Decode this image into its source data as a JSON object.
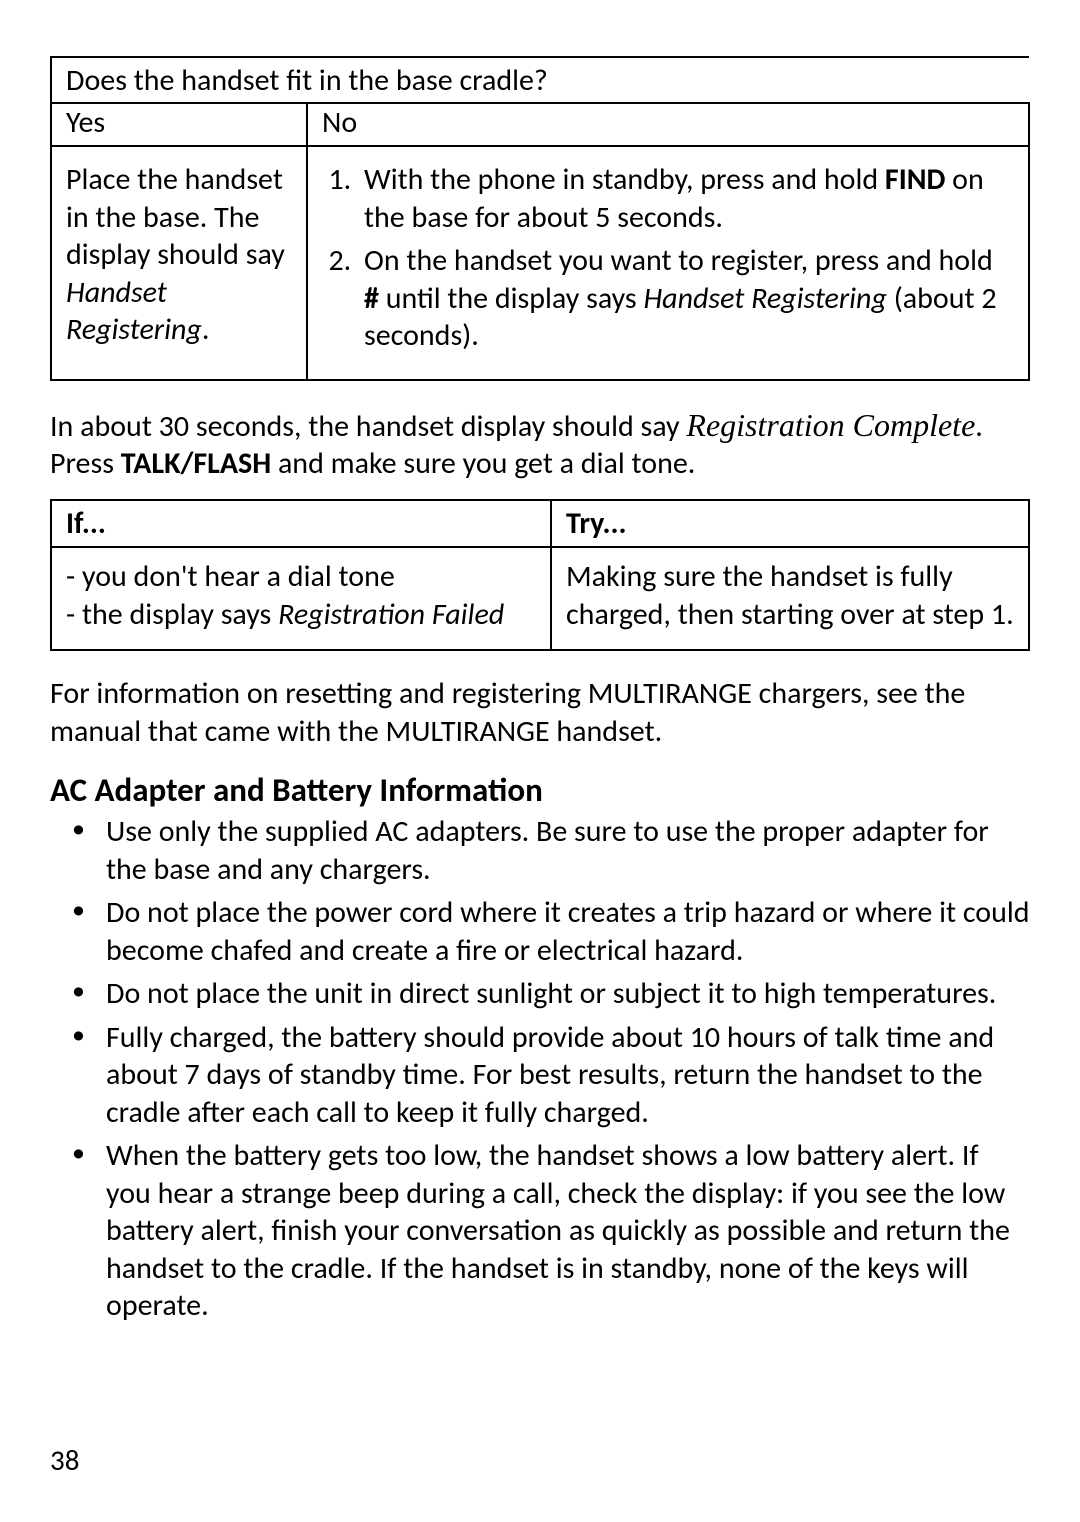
{
  "page_number": "38",
  "table1": {
    "question": "Does the handset fit in the base cradle?",
    "yes_header": "Yes",
    "no_header": "No",
    "yes_body_pre": "Place the handset in the base. The display should say ",
    "yes_body_em": "Handset Registering",
    "yes_body_post": ".",
    "no_step1_pre": "With the phone in standby, press and hold ",
    "no_step1_bold": "FIND",
    "no_step1_post": " on the base for about 5 seconds.",
    "no_step2_pre": "On the handset you want to register, press and hold ",
    "no_step2_bold": "#",
    "no_step2_mid": " until the display says ",
    "no_step2_em": "Handset Registering",
    "no_step2_post": " (about 2 seconds)."
  },
  "mid_para": {
    "pre": "In about 30 seconds, the handset display should say ",
    "em": "Registration Complete",
    "mid": ". Press ",
    "bold": "TALK/FLASH",
    "post": " and make sure you get a dial tone."
  },
  "table2": {
    "if_header": "If...",
    "try_header": "Try...",
    "if_item1": "you don't hear a dial tone",
    "if_item2_pre": "the display says ",
    "if_item2_em": "Registration Failed",
    "try_body": "Making sure the handset is fully charged, then starting over at step 1."
  },
  "note_para": "For information on resetting and registering MULTIRANGE chargers, see the manual that came with the MULTIRANGE handset.",
  "section_heading": "AC Adapter and Battery Information",
  "bullets": [
    "Use only the supplied AC adapters. Be sure to use the proper adapter for the base and any chargers.",
    "Do not place the power cord where it creates a trip hazard or where it could become chafed and create a fire or electrical hazard.",
    "Do not place the unit in direct sunlight or subject it to high temperatures.",
    "Fully charged, the battery should provide about 10 hours of talk time and about 7 days of standby time. For best results, return the handset to the cradle after each call to keep it fully charged.",
    "When the battery gets too low, the handset shows a low battery alert. If you hear a strange beep during a call, check the display: if you see the low battery alert, finish your conversation as quickly as possible and return the handset to the cradle. If the handset is in standby, none of the keys will operate."
  ]
}
